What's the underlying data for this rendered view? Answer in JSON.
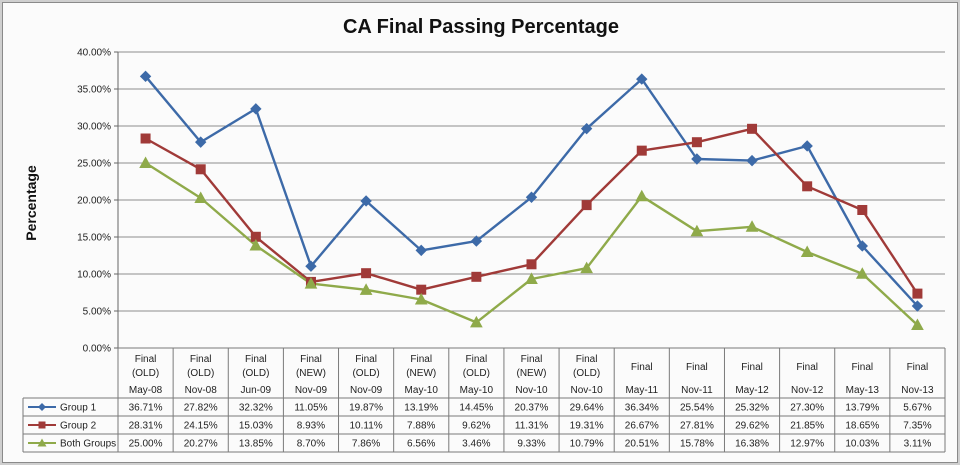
{
  "chart_data": {
    "type": "line",
    "title": "CA Final Passing Percentage",
    "ylabel": "Percentage",
    "xlabel": "",
    "ylim": [
      0,
      40
    ],
    "yticks": [
      "0.00%",
      "5.00%",
      "10.00%",
      "15.00%",
      "20.00%",
      "25.00%",
      "30.00%",
      "35.00%",
      "40.00%"
    ],
    "grid": true,
    "categories": [
      {
        "l1": "Final",
        "l2": "(OLD)",
        "l3": "May-08"
      },
      {
        "l1": "Final",
        "l2": "(OLD)",
        "l3": "Nov-08"
      },
      {
        "l1": "Final",
        "l2": "(OLD)",
        "l3": "Jun-09"
      },
      {
        "l1": "Final",
        "l2": "(NEW)",
        "l3": "Nov-09"
      },
      {
        "l1": "Final",
        "l2": "(OLD)",
        "l3": "Nov-09"
      },
      {
        "l1": "Final",
        "l2": "(NEW)",
        "l3": "May-10"
      },
      {
        "l1": "Final",
        "l2": "(OLD)",
        "l3": "May-10"
      },
      {
        "l1": "Final",
        "l2": "(NEW)",
        "l3": "Nov-10"
      },
      {
        "l1": "Final",
        "l2": "(OLD)",
        "l3": "Nov-10"
      },
      {
        "l1": "Final",
        "l2": "",
        "l3": "May-11"
      },
      {
        "l1": "Final",
        "l2": "",
        "l3": "Nov-11"
      },
      {
        "l1": "Final",
        "l2": "",
        "l3": "May-12"
      },
      {
        "l1": "Final",
        "l2": "",
        "l3": "Nov-12"
      },
      {
        "l1": "Final",
        "l2": "",
        "l3": "May-13"
      },
      {
        "l1": "Final",
        "l2": "",
        "l3": "Nov-13"
      }
    ],
    "series": [
      {
        "name": "Group 1",
        "color": "#3d6aa8",
        "marker": "diamond",
        "values": [
          36.71,
          27.82,
          32.32,
          11.05,
          19.87,
          13.19,
          14.45,
          20.37,
          29.64,
          36.34,
          25.54,
          25.32,
          27.3,
          13.79,
          5.67
        ],
        "labels": [
          "36.71%",
          "27.82%",
          "32.32%",
          "11.05%",
          "19.87%",
          "13.19%",
          "14.45%",
          "20.37%",
          "29.64%",
          "36.34%",
          "25.54%",
          "25.32%",
          "27.30%",
          "13.79%",
          "5.67%"
        ]
      },
      {
        "name": "Group 2",
        "color": "#a03a38",
        "marker": "square",
        "values": [
          28.31,
          24.15,
          15.03,
          8.93,
          10.11,
          7.88,
          9.62,
          11.31,
          19.31,
          26.67,
          27.81,
          29.62,
          21.85,
          18.65,
          7.35
        ],
        "labels": [
          "28.31%",
          "24.15%",
          "15.03%",
          "8.93%",
          "10.11%",
          "7.88%",
          "9.62%",
          "11.31%",
          "19.31%",
          "26.67%",
          "27.81%",
          "29.62%",
          "21.85%",
          "18.65%",
          "7.35%"
        ]
      },
      {
        "name": "Both Groups",
        "color": "#8faa4a",
        "marker": "triangle",
        "values": [
          25.0,
          20.27,
          13.85,
          8.7,
          7.86,
          6.56,
          3.46,
          9.33,
          10.79,
          20.51,
          15.78,
          16.38,
          12.97,
          10.03,
          3.11
        ],
        "labels": [
          "25.00%",
          "20.27%",
          "13.85%",
          "8.70%",
          "7.86%",
          "6.56%",
          "3.46%",
          "9.33%",
          "10.79%",
          "20.51%",
          "15.78%",
          "16.38%",
          "12.97%",
          "10.03%",
          "3.11%"
        ]
      }
    ]
  }
}
